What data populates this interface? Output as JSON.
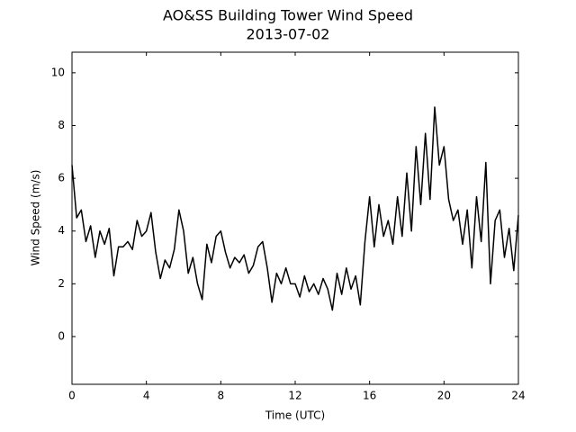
{
  "chart_data": {
    "type": "line",
    "title": "AO&SS Building Tower Wind Speed",
    "subtitle": "2013-07-02",
    "x_label": "Time (UTC)",
    "y_label": "Wind Speed (m/s)",
    "xlim": [
      0,
      24
    ],
    "xticks": [
      0,
      4,
      8,
      12,
      16,
      20,
      24
    ],
    "ylim": [
      -1.81,
      10.78
    ],
    "yticks": [
      0,
      2,
      4,
      6,
      8,
      10
    ],
    "grid": false,
    "series": [
      {
        "name": "Wind Speed",
        "color": "#000000",
        "x": [
          0,
          0.25,
          0.5,
          0.75,
          1,
          1.25,
          1.5,
          1.75,
          2,
          2.25,
          2.5,
          2.75,
          3,
          3.25,
          3.5,
          3.75,
          4,
          4.25,
          4.5,
          4.75,
          5,
          5.25,
          5.5,
          5.75,
          6,
          6.25,
          6.5,
          6.75,
          7,
          7.25,
          7.5,
          7.75,
          8,
          8.25,
          8.5,
          8.75,
          9,
          9.25,
          9.5,
          9.75,
          10,
          10.25,
          10.5,
          10.75,
          11,
          11.25,
          11.5,
          11.75,
          12,
          12.25,
          12.5,
          12.75,
          13,
          13.25,
          13.5,
          13.75,
          14,
          14.25,
          14.5,
          14.75,
          15,
          15.25,
          15.5,
          15.75,
          16,
          16.25,
          16.5,
          16.75,
          17,
          17.25,
          17.5,
          17.75,
          18,
          18.25,
          18.5,
          18.75,
          19,
          19.25,
          19.5,
          19.75,
          20,
          20.25,
          20.5,
          20.75,
          21,
          21.25,
          21.5,
          21.75,
          22,
          22.25,
          22.5,
          22.75,
          23,
          23.25,
          23.5,
          23.75,
          24
        ],
        "values": [
          6.5,
          4.5,
          4.8,
          3.6,
          4.2,
          3.0,
          4.0,
          3.5,
          4.1,
          2.3,
          3.4,
          3.4,
          3.6,
          3.3,
          4.4,
          3.8,
          4.0,
          4.7,
          3.2,
          2.2,
          2.9,
          2.6,
          3.3,
          4.8,
          4.0,
          2.4,
          3.0,
          2.0,
          1.4,
          3.5,
          2.8,
          3.8,
          4.0,
          3.2,
          2.6,
          3.0,
          2.8,
          3.1,
          2.4,
          2.7,
          3.4,
          3.6,
          2.6,
          1.3,
          2.4,
          2.0,
          2.6,
          2.0,
          2.0,
          1.5,
          2.3,
          1.7,
          2.0,
          1.6,
          2.2,
          1.8,
          1.0,
          2.4,
          1.6,
          2.6,
          1.8,
          2.3,
          1.2,
          3.6,
          5.3,
          3.4,
          5.0,
          3.8,
          4.4,
          3.5,
          5.3,
          3.8,
          6.2,
          4.0,
          7.2,
          5.0,
          7.7,
          5.2,
          8.7,
          6.5,
          7.2,
          5.2,
          4.4,
          4.8,
          3.5,
          4.8,
          2.6,
          5.3,
          3.6,
          6.6,
          2.0,
          4.4,
          4.8,
          3.0,
          4.1,
          2.5,
          4.6
        ]
      }
    ]
  }
}
